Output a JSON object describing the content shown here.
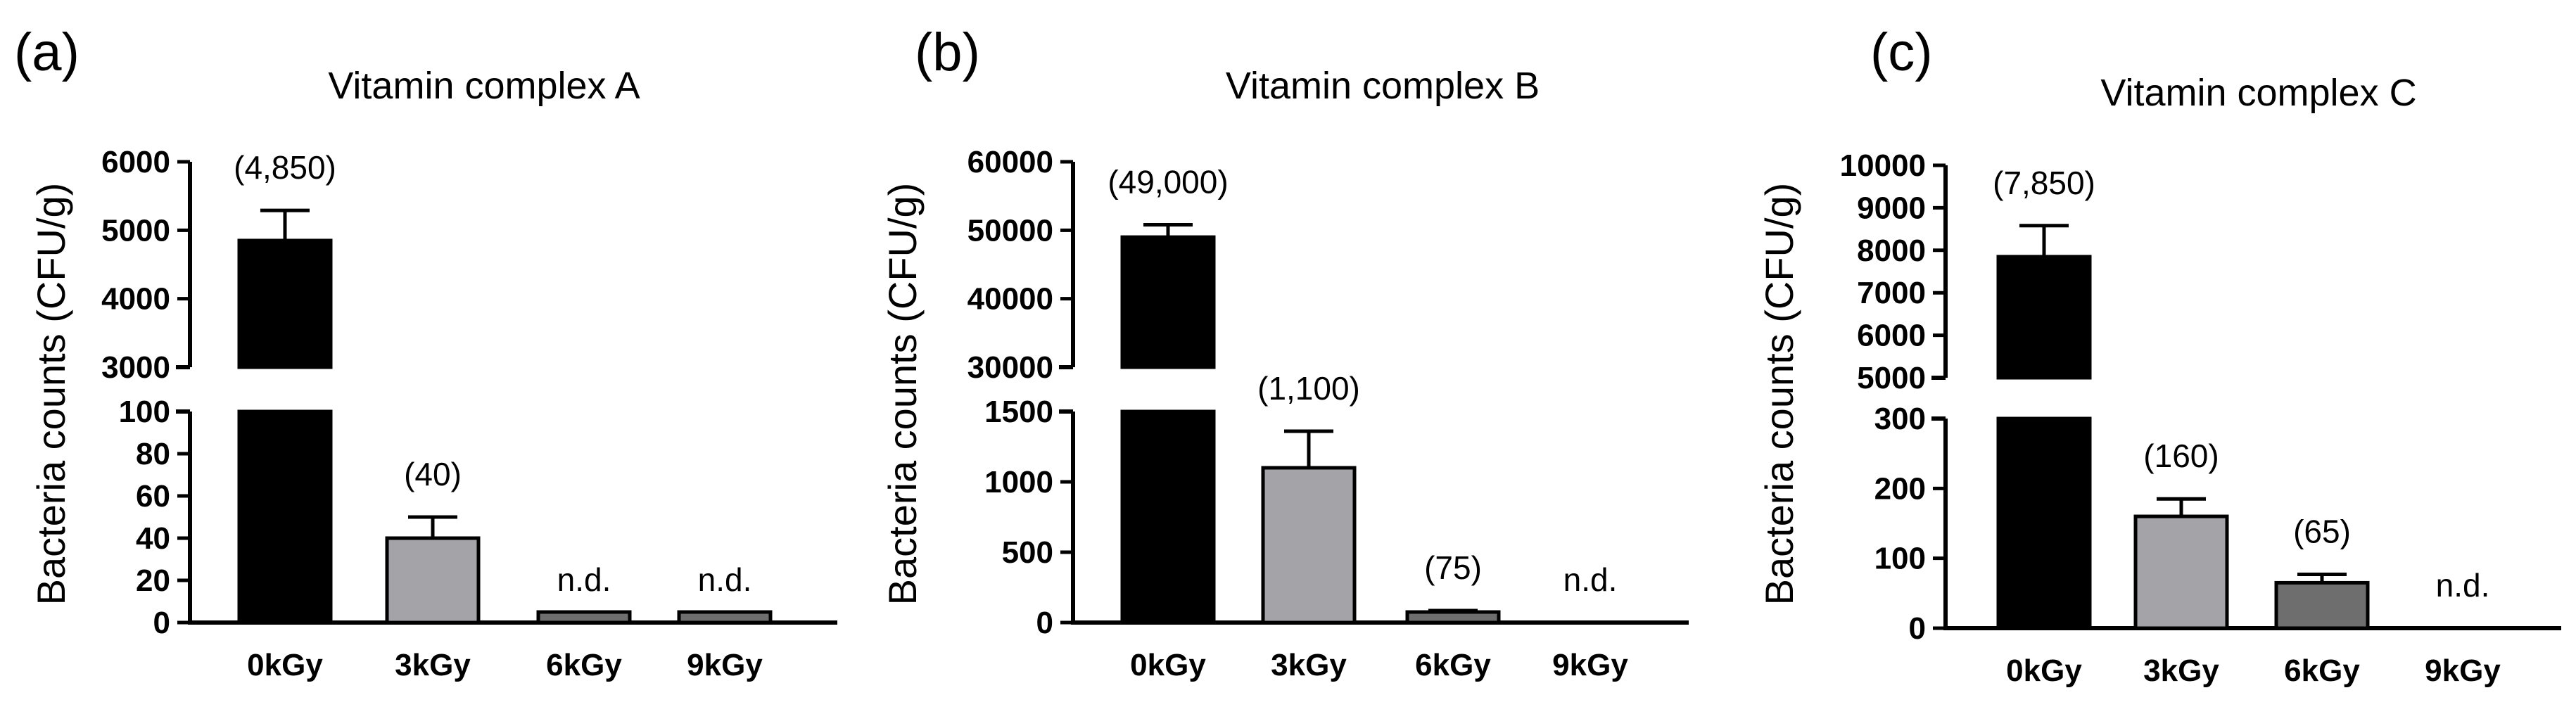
{
  "chart_data": [
    {
      "type": "bar",
      "panel": "(a)",
      "title": "Vitamin complex A",
      "ylabel": "Bacteria counts (CFU/g)",
      "xlabel": "",
      "categories": [
        "0kGy",
        "3kGy",
        "6kGy",
        "9kGy"
      ],
      "values": [
        4850,
        40,
        5,
        5
      ],
      "errors": [
        440,
        10,
        0,
        0
      ],
      "value_labels": [
        "(4,850)",
        "(40)",
        "n.d.",
        "n.d."
      ],
      "bar_colors": [
        "#000000",
        "#a3a3a8",
        "#6e6e6e",
        "#6e6e6e"
      ],
      "y_break": {
        "lower": {
          "range": [
            0,
            100
          ],
          "ticks": [
            0,
            20,
            40,
            60,
            80,
            100
          ]
        },
        "upper": {
          "range": [
            3000,
            6000
          ],
          "ticks": [
            3000,
            4000,
            5000,
            6000
          ]
        }
      },
      "tick_labels": {
        "0": "0",
        "20": "20",
        "40": "40",
        "60": "60",
        "80": "80",
        "100": "100",
        "3000": "3000",
        "4000": "4000",
        "5000": "5000",
        "6000": "6000"
      }
    },
    {
      "type": "bar",
      "panel": "(b)",
      "title": "Vitamin complex B",
      "ylabel": "Bacteria counts (CFU/g)",
      "xlabel": "",
      "categories": [
        "0kGy",
        "3kGy",
        "6kGy",
        "9kGy"
      ],
      "values": [
        49000,
        1100,
        75,
        0
      ],
      "errors": [
        1800,
        260,
        10,
        0
      ],
      "value_labels": [
        "(49,000)",
        "(1,100)",
        "(75)",
        "n.d."
      ],
      "bar_colors": [
        "#000000",
        "#a3a3a8",
        "#6e6e6e",
        "#6e6e6e"
      ],
      "y_break": {
        "lower": {
          "range": [
            0,
            1500
          ],
          "ticks": [
            0,
            500,
            1000,
            1500
          ]
        },
        "upper": {
          "range": [
            30000,
            60000
          ],
          "ticks": [
            30000,
            40000,
            50000,
            60000
          ]
        }
      },
      "tick_labels": {
        "0": "0",
        "500": "500",
        "1000": "1000",
        "1500": "1500",
        "30000": "30000",
        "40000": "40000",
        "50000": "50000",
        "60000": "60000"
      }
    },
    {
      "type": "bar",
      "panel": "(c)",
      "title": "Vitamin complex C",
      "ylabel": "Bacteria counts (CFU/g)",
      "xlabel": "",
      "categories": [
        "0kGy",
        "3kGy",
        "6kGy",
        "9kGy"
      ],
      "values": [
        7850,
        160,
        65,
        0
      ],
      "errors": [
        730,
        25,
        12,
        0
      ],
      "value_labels": [
        "(7,850)",
        "(160)",
        "(65)",
        "n.d."
      ],
      "bar_colors": [
        "#000000",
        "#a3a3a8",
        "#6e6e6e",
        "#6e6e6e"
      ],
      "y_break": {
        "lower": {
          "range": [
            0,
            300
          ],
          "ticks": [
            0,
            100,
            200,
            300
          ]
        },
        "upper": {
          "range": [
            5000,
            10000
          ],
          "ticks": [
            5000,
            6000,
            7000,
            8000,
            9000,
            10000
          ]
        }
      },
      "tick_labels": {
        "0": "0",
        "100": "100",
        "200": "200",
        "300": "300",
        "5000": "5000",
        "6000": "6000",
        "7000": "7000",
        "8000": "8000",
        "9000": "9000",
        "10000": "10000"
      }
    }
  ]
}
